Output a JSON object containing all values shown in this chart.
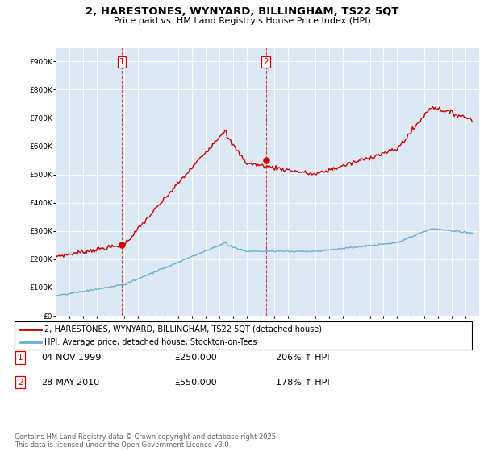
{
  "title": "2, HARESTONES, WYNYARD, BILLINGHAM, TS22 5QT",
  "subtitle": "Price paid vs. HM Land Registry's House Price Index (HPI)",
  "legend_line1": "2, HARESTONES, WYNYARD, BILLINGHAM, TS22 5QT (detached house)",
  "legend_line2": "HPI: Average price, detached house, Stockton-on-Tees",
  "footnote": "Contains HM Land Registry data © Crown copyright and database right 2025.\nThis data is licensed under the Open Government Licence v3.0.",
  "sale1_date": "04-NOV-1999",
  "sale1_price": 250000,
  "sale1_label": "206% ↑ HPI",
  "sale2_date": "28-MAY-2010",
  "sale2_price": 550000,
  "sale2_label": "178% ↑ HPI",
  "sale1_year": 1999.84,
  "sale2_year": 2010.4,
  "hpi_color": "#6baed6",
  "price_color": "#cc0000",
  "plot_bg": "#dce9f5",
  "ylim": [
    0,
    950000
  ],
  "xlim_start": 1995,
  "xlim_end": 2026
}
